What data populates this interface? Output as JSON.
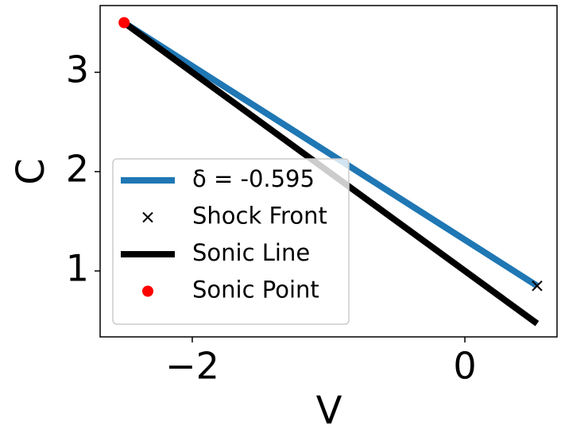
{
  "chart_data": {
    "type": "line",
    "xlabel": "V",
    "ylabel": "C",
    "xlim": [
      -2.676,
      0.676
    ],
    "ylim": [
      0.336,
      3.672
    ],
    "xticks": [
      {
        "value": -2,
        "label": "−2"
      },
      0
    ],
    "yticks": [
      1,
      2,
      3
    ],
    "legend": "lower left",
    "series": [
      {
        "name": "δ = -0.595",
        "color": "#1f77b4",
        "style": "line",
        "x": [
          -2.5,
          0.53
        ],
        "values": [
          3.5,
          0.85
        ]
      },
      {
        "name": "Shock Front",
        "color": "#000000",
        "style": "x",
        "x": [
          0.53
        ],
        "values": [
          0.85
        ]
      },
      {
        "name": "Sonic Line",
        "color": "#000000",
        "style": "line",
        "x": [
          -2.5,
          0.53
        ],
        "values": [
          3.5,
          0.47
        ]
      },
      {
        "name": "Sonic Point",
        "color": "#ff0000",
        "style": "dot",
        "x": [
          -2.5
        ],
        "values": [
          3.5
        ]
      }
    ]
  }
}
